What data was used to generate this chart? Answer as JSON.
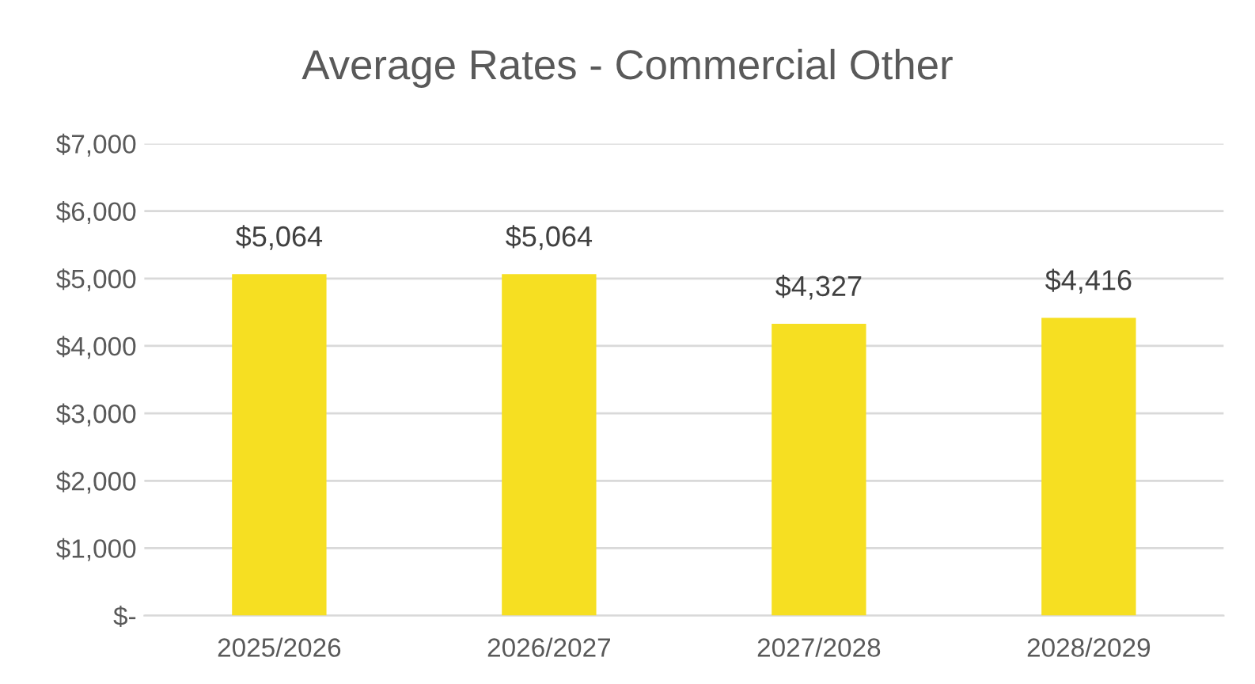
{
  "chart_data": {
    "type": "bar",
    "title": "Average Rates - Commercial Other",
    "categories": [
      "2025/2026",
      "2026/2027",
      "2027/2028",
      "2028/2029"
    ],
    "values": [
      5064,
      5064,
      4327,
      4416
    ],
    "color": "#f6df22",
    "value_labels": [
      "$5,064",
      "$5,064",
      "$4,327",
      "$4,416"
    ],
    "ylim": [
      0,
      7000
    ],
    "yticks": [
      {
        "value": 0,
        "label": "$-"
      },
      {
        "value": 1000,
        "label": "$1,000"
      },
      {
        "value": 2000,
        "label": "$2,000"
      },
      {
        "value": 3000,
        "label": "$3,000"
      },
      {
        "value": 4000,
        "label": "$4,000"
      },
      {
        "value": 5000,
        "label": "$5,000"
      },
      {
        "value": 6000,
        "label": "$6,000"
      },
      {
        "value": 7000,
        "label": "$7,000"
      }
    ],
    "grid": "y"
  }
}
